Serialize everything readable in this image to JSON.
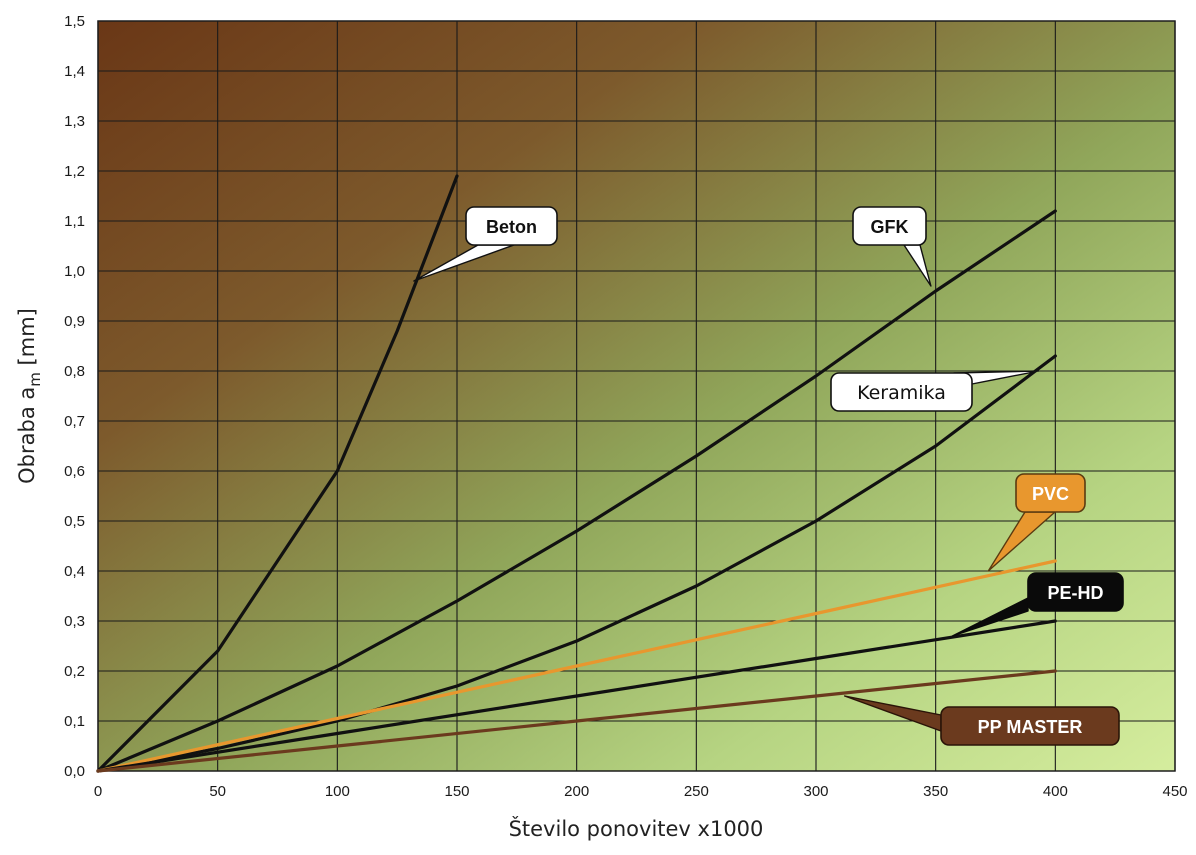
{
  "chart_data": {
    "type": "line",
    "title": "",
    "xlabel": "Število ponovitev x1000",
    "ylabel_main": "Obraba a",
    "ylabel_sub": "m",
    "ylabel_unit": " [mm]",
    "xlim": [
      0,
      450
    ],
    "ylim": [
      0,
      1.5
    ],
    "grid": true,
    "x_ticks": [
      "0",
      "50",
      "100",
      "150",
      "200",
      "250",
      "300",
      "350",
      "400",
      "450"
    ],
    "y_ticks": [
      "0,0",
      "0,1",
      "0,2",
      "0,3",
      "0,4",
      "0,5",
      "0,6",
      "0,7",
      "0,8",
      "0,9",
      "1,0",
      "1,1",
      "1,2",
      "1,3",
      "1,4",
      "1,5"
    ],
    "series": [
      {
        "name": "Beton",
        "color": "#111111",
        "points": [
          [
            0,
            0
          ],
          [
            50,
            0.24
          ],
          [
            100,
            0.6
          ],
          [
            125,
            0.88
          ],
          [
            150,
            1.19
          ]
        ]
      },
      {
        "name": "GFK",
        "color": "#111111",
        "points": [
          [
            0,
            0
          ],
          [
            50,
            0.1
          ],
          [
            100,
            0.21
          ],
          [
            150,
            0.34
          ],
          [
            200,
            0.48
          ],
          [
            250,
            0.63
          ],
          [
            300,
            0.79
          ],
          [
            350,
            0.96
          ],
          [
            400,
            1.12
          ]
        ]
      },
      {
        "name": "Keramika",
        "color": "#111111",
        "points": [
          [
            0,
            0
          ],
          [
            50,
            0.045
          ],
          [
            100,
            0.1
          ],
          [
            150,
            0.17
          ],
          [
            200,
            0.26
          ],
          [
            250,
            0.37
          ],
          [
            300,
            0.5
          ],
          [
            350,
            0.65
          ],
          [
            400,
            0.83
          ]
        ]
      },
      {
        "name": "PVC",
        "color": "#e8972e",
        "points": [
          [
            0,
            0
          ],
          [
            100,
            0.105
          ],
          [
            200,
            0.21
          ],
          [
            300,
            0.315
          ],
          [
            400,
            0.42
          ]
        ]
      },
      {
        "name": "PE-HD",
        "color": "#111111",
        "points": [
          [
            0,
            0
          ],
          [
            100,
            0.075
          ],
          [
            200,
            0.15
          ],
          [
            300,
            0.225
          ],
          [
            400,
            0.3
          ]
        ]
      },
      {
        "name": "PP MASTER",
        "color": "#6b3a1e",
        "points": [
          [
            0,
            0
          ],
          [
            100,
            0.05
          ],
          [
            200,
            0.1
          ],
          [
            300,
            0.15
          ],
          [
            400,
            0.2
          ]
        ]
      }
    ],
    "callouts": [
      {
        "label": "Beton",
        "bg": "#ffffff",
        "fg": "#111111",
        "border": "#111111",
        "style": "bold",
        "anchor_x": 132,
        "anchor_y": 0.98
      },
      {
        "label": "GFK",
        "bg": "#ffffff",
        "fg": "#111111",
        "border": "#111111",
        "style": "bold",
        "anchor_x": 348,
        "anchor_y": 0.97
      },
      {
        "label": "Keramika",
        "bg": "#ffffff",
        "fg": "#111111",
        "border": "#111111",
        "style": "plain",
        "anchor_x": 393,
        "anchor_y": 0.8
      },
      {
        "label": "PVC",
        "bg": "#e8972e",
        "fg": "#ffffff",
        "border": "#5a3a10",
        "style": "bold",
        "anchor_x": 372,
        "anchor_y": 0.4
      },
      {
        "label": "PE-HD",
        "bg": "#0a0a0a",
        "fg": "#ffffff",
        "border": "#0a0a0a",
        "style": "bold",
        "anchor_x": 357,
        "anchor_y": 0.27
      },
      {
        "label": "PP MASTER",
        "bg": "#6b3a1e",
        "fg": "#ffffff",
        "border": "#2a1408",
        "style": "bold",
        "anchor_x": 312,
        "anchor_y": 0.15
      }
    ]
  }
}
